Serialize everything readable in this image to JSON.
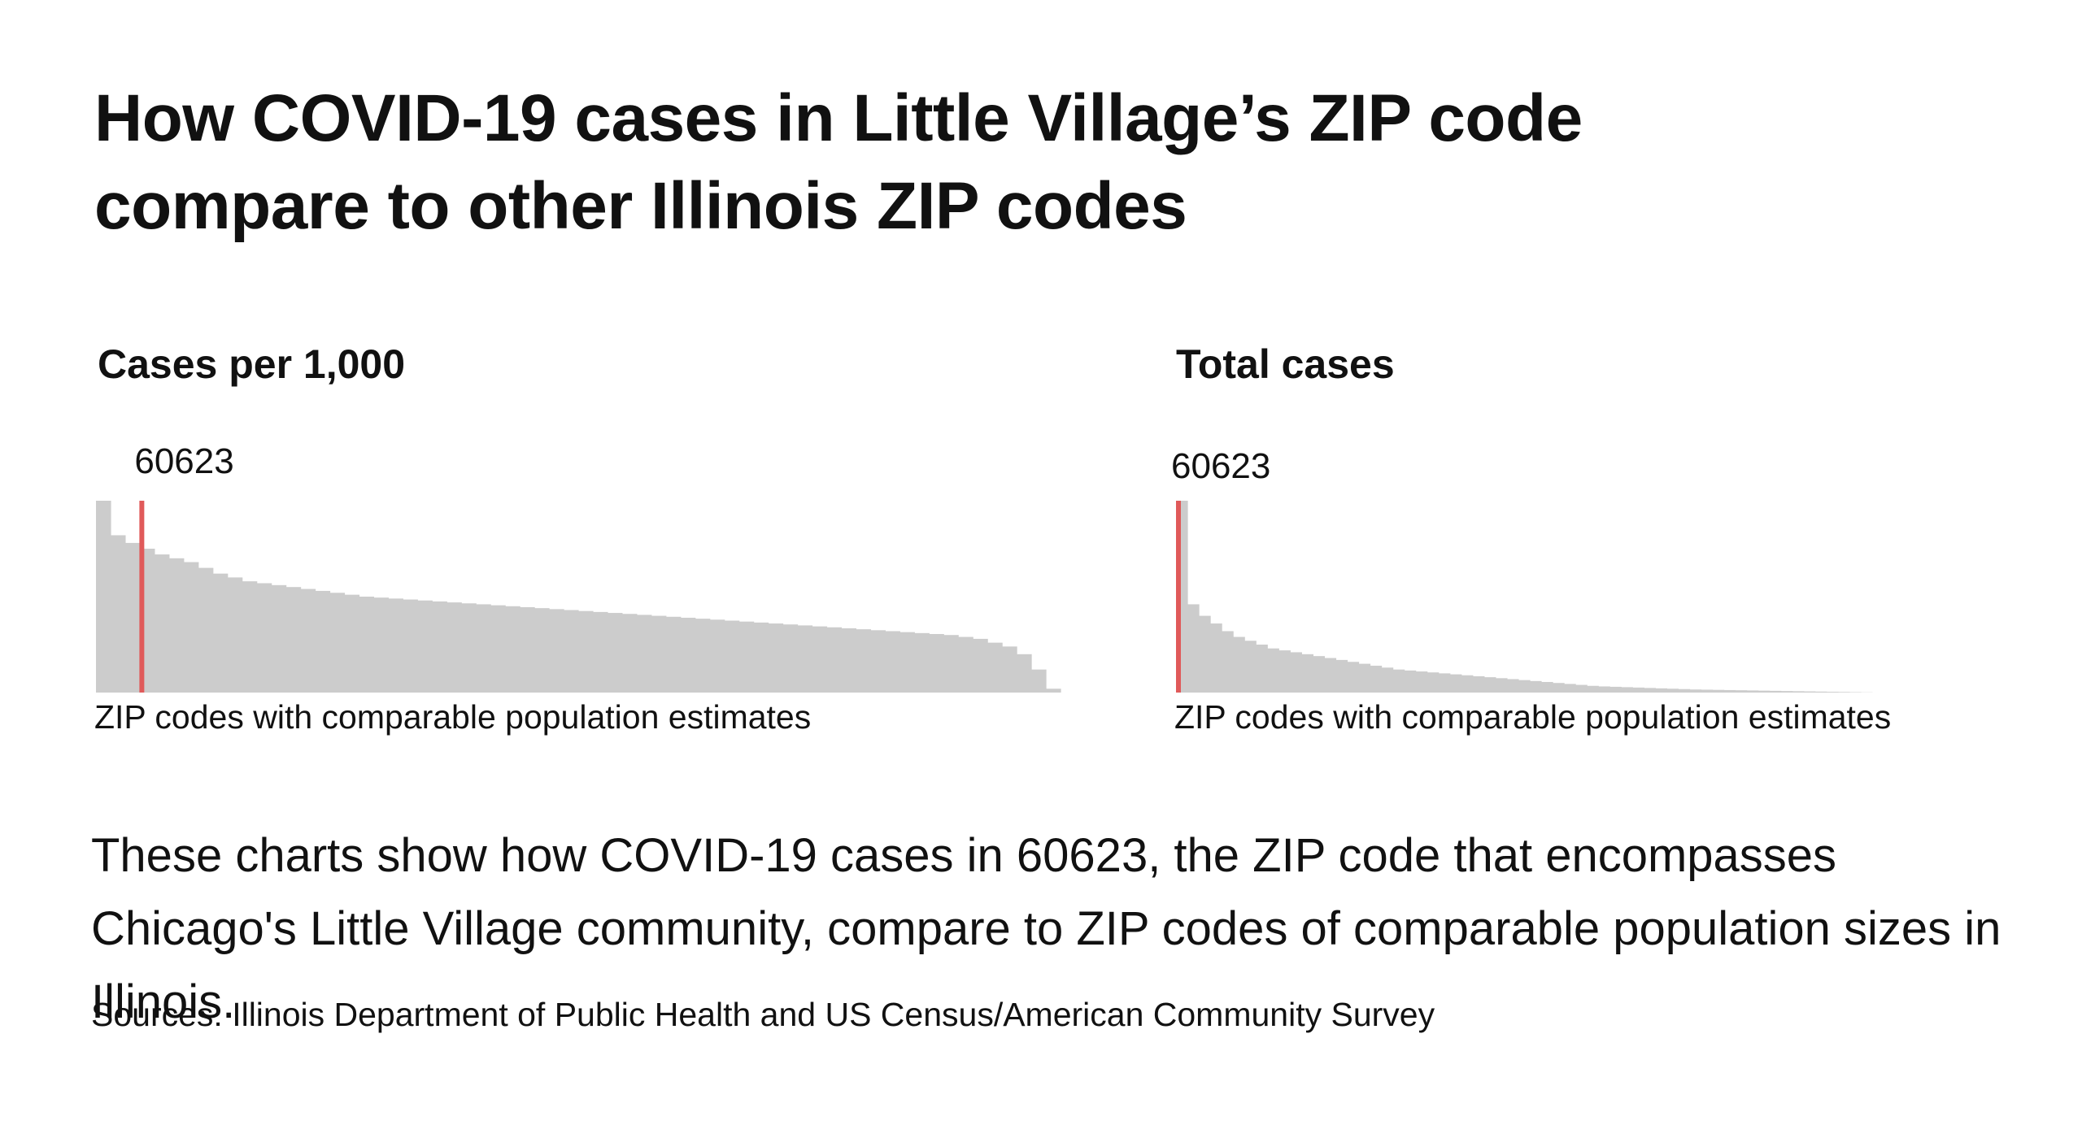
{
  "headline": "How COVID-19 cases in Little Village’s ZIP code compare to other Illinois ZIP codes",
  "description": "These charts show how COVID-19 cases in 60623, the ZIP code that encompasses Chicago's Little Village community, compare to ZIP codes of comparable population sizes in Illinois.",
  "sources": "Sources: Illinois Department of Public Health and US Census/American Community Survey",
  "colors": {
    "bar": "#cccccc",
    "highlight": "#e05a5a",
    "text": "#111111"
  },
  "chart_data": [
    {
      "type": "bar",
      "title": "Cases per 1,000",
      "xlabel": "ZIP codes with comparable population estimates",
      "highlight_label": "60623",
      "highlight_rank": 0.045,
      "sorted": "descending",
      "ylim": [
        0,
        100
      ],
      "values": [
        100,
        82,
        78,
        75,
        72,
        70,
        68,
        65,
        62,
        60,
        58,
        57,
        56,
        55,
        54,
        53,
        52,
        51,
        50,
        49.5,
        49,
        48.5,
        48,
        47.5,
        47,
        46.5,
        46,
        45.5,
        45,
        44.5,
        44,
        43.5,
        43,
        42.5,
        42,
        41.5,
        41,
        40.5,
        40,
        39.5,
        39,
        38.5,
        38,
        37.5,
        37,
        36.5,
        36,
        35.5,
        35,
        34.5,
        34,
        33.5,
        33,
        32.5,
        32,
        31.5,
        31,
        30.5,
        30,
        29,
        28,
        26,
        24,
        20,
        12,
        2
      ]
    },
    {
      "type": "bar",
      "title": "Total cases",
      "xlabel": "ZIP codes with comparable population estimates",
      "highlight_label": "60623",
      "highlight_rank": 0.0,
      "sorted": "descending",
      "ylim": [
        0,
        100
      ],
      "values": [
        100,
        46,
        40,
        36,
        32,
        29,
        27,
        25,
        23,
        22,
        21,
        20,
        19,
        18,
        17,
        16,
        15,
        14,
        13,
        12,
        11.5,
        11,
        10.5,
        10,
        9.5,
        9,
        8.5,
        8,
        7.5,
        7,
        6.5,
        6,
        5.5,
        5,
        4.5,
        4,
        3.5,
        3.2,
        3,
        2.8,
        2.6,
        2.4,
        2.2,
        2,
        1.8,
        1.6,
        1.5,
        1.4,
        1.3,
        1.2,
        1.1,
        1.0,
        0.9,
        0.8,
        0.7,
        0.6,
        0.5,
        0.4,
        0.3,
        0.2,
        0.1
      ]
    }
  ]
}
